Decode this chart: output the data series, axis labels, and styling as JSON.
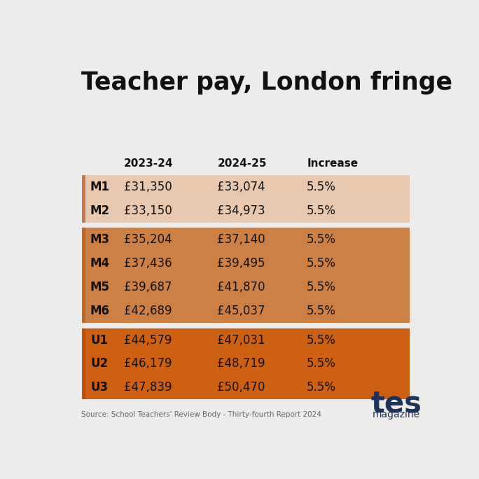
{
  "title": "Teacher pay, London fringe",
  "background_color": "#edecea",
  "col_headers": [
    "2023-24",
    "2024-25",
    "Increase"
  ],
  "groups": [
    {
      "rows": [
        {
          "label": "M1",
          "pay_2324": "£31,350",
          "pay_2425": "£33,074",
          "increase": "5.5%"
        },
        {
          "label": "M2",
          "pay_2324": "£33,150",
          "pay_2425": "£34,973",
          "increase": "5.5%"
        }
      ],
      "label_color": "#1a1a1a",
      "label_border": "#c8784a",
      "row_bg": "#e8c9b0"
    },
    {
      "rows": [
        {
          "label": "M3",
          "pay_2324": "£35,204",
          "pay_2425": "£37,140",
          "increase": "5.5%"
        },
        {
          "label": "M4",
          "pay_2324": "£37,436",
          "pay_2425": "£39,495",
          "increase": "5.5%"
        },
        {
          "label": "M5",
          "pay_2324": "£39,687",
          "pay_2425": "£41,870",
          "increase": "5.5%"
        },
        {
          "label": "M6",
          "pay_2324": "£42,689",
          "pay_2425": "£45,037",
          "increase": "5.5%"
        }
      ],
      "label_color": "#1a1a1a",
      "label_border": "#c06820",
      "row_bg": "#cd8044"
    },
    {
      "rows": [
        {
          "label": "U1",
          "pay_2324": "£44,579",
          "pay_2425": "£47,031",
          "increase": "5.5%"
        },
        {
          "label": "U2",
          "pay_2324": "£46,179",
          "pay_2425": "£48,719",
          "increase": "5.5%"
        },
        {
          "label": "U3",
          "pay_2324": "£47,839",
          "pay_2425": "£50,470",
          "increase": "5.5%"
        }
      ],
      "label_color": "#1a1a1a",
      "label_border": "#c05000",
      "row_bg": "#cc6010"
    }
  ],
  "source_text": "Source: School Teachers' Review Body - Thirty-fourth Report 2024",
  "tes_color": "#1e3357"
}
